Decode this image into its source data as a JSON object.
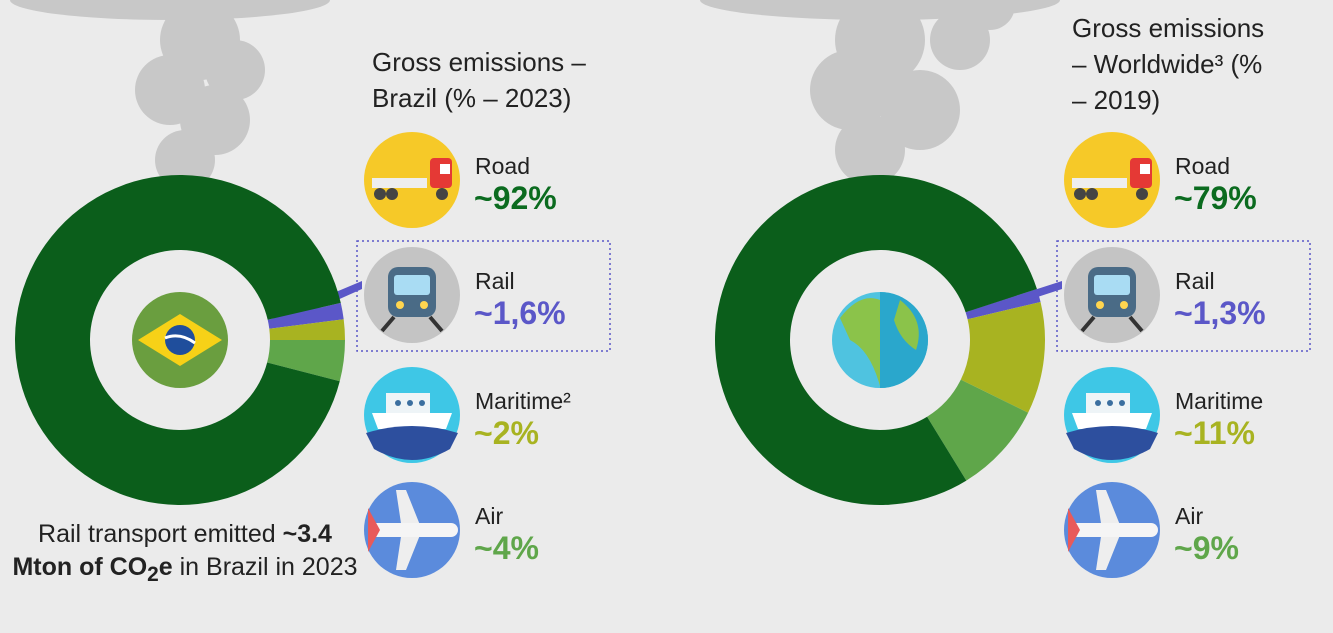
{
  "chart_data": [
    {
      "type": "donut",
      "title": "Gross emissions – Brazil (% – 2023)",
      "categories": [
        "Road",
        "Rail",
        "Maritime²",
        "Air"
      ],
      "values": [
        92,
        1.6,
        2,
        4
      ],
      "value_labels": [
        "~92%",
        "~1,6%",
        "~2%",
        "~4%"
      ],
      "colors": [
        "#0b5e1b",
        "#5b57c8",
        "#a8b321",
        "#5fa64a"
      ],
      "annotation": [
        "Rail transport emitted ",
        "~3.4 Mton of CO",
        "2",
        "e",
        " in Brazil in 2023"
      ]
    },
    {
      "type": "donut",
      "title": "Gross emissions – Worldwide³ (% – 2019)",
      "categories": [
        "Road",
        "Rail",
        "Maritime",
        "Air"
      ],
      "values": [
        79,
        1.3,
        11,
        9
      ],
      "value_labels": [
        "~79%",
        "~1,3%",
        "~11%",
        "~9%"
      ],
      "colors": [
        "#0b5e1b",
        "#5b57c8",
        "#a8b321",
        "#5fa64a"
      ]
    }
  ]
}
